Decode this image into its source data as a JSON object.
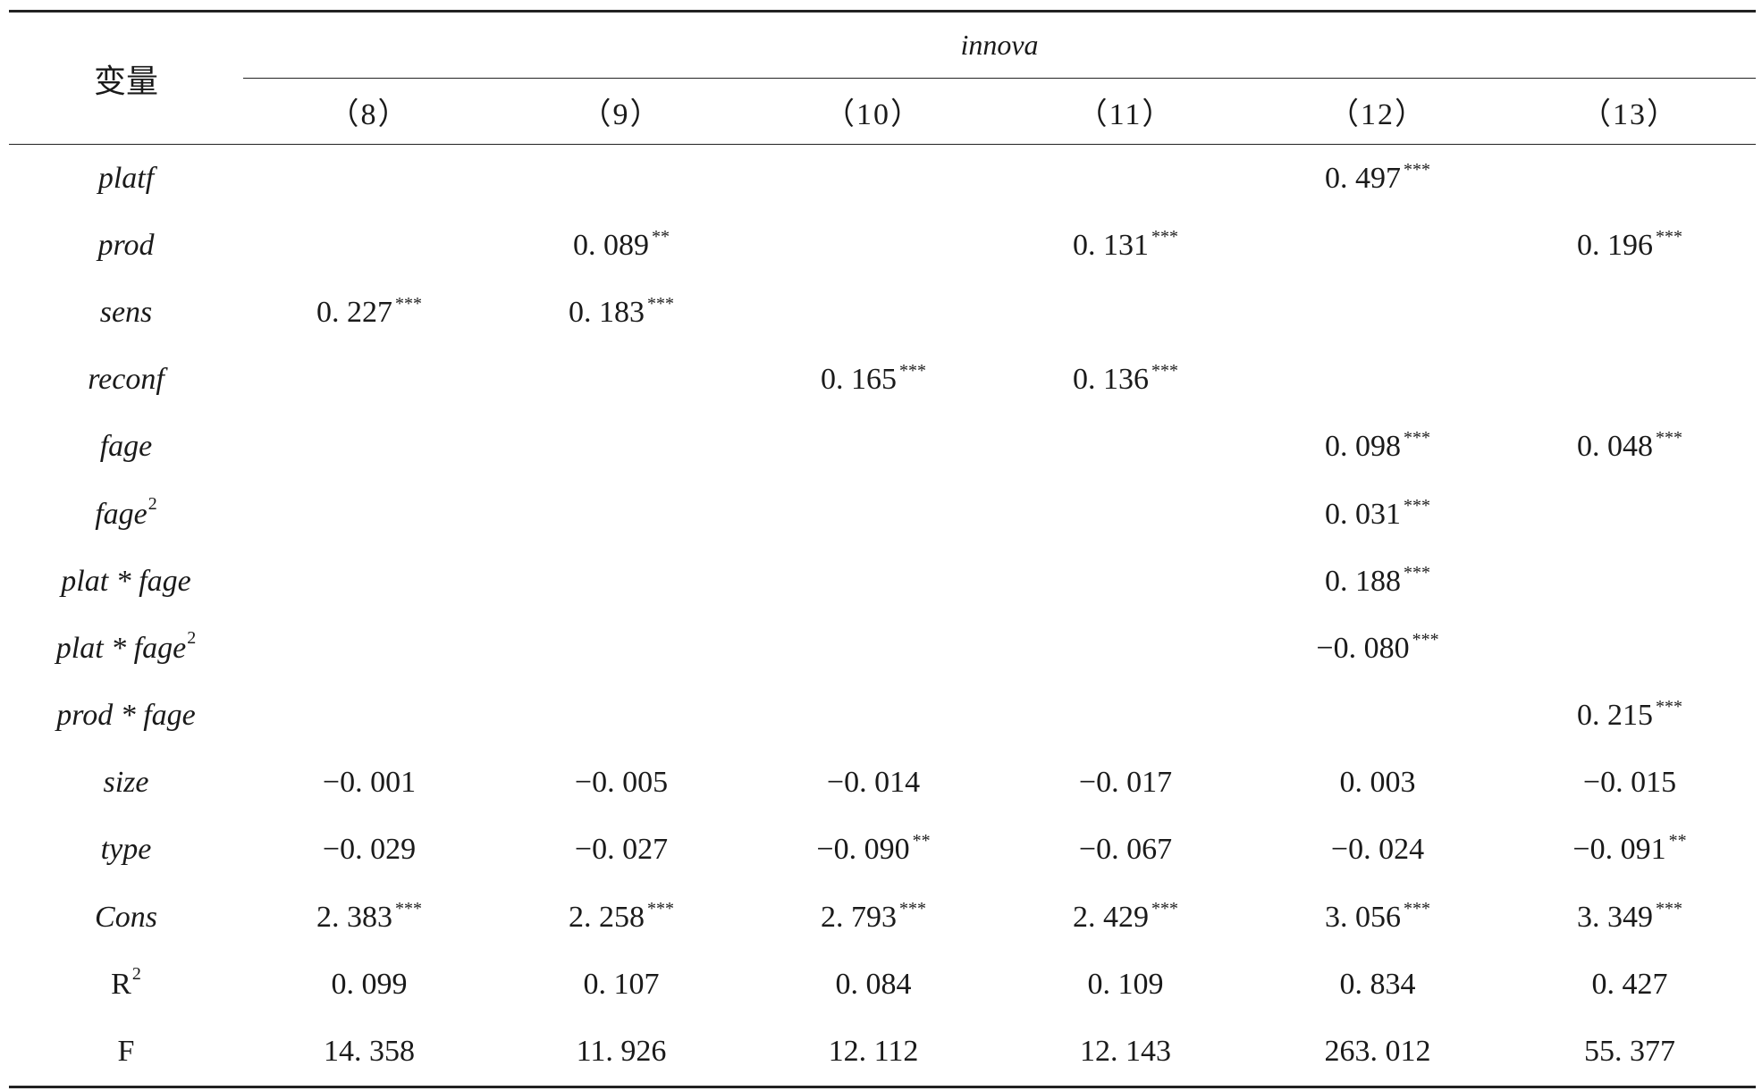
{
  "header": {
    "var_label": "变量",
    "dep_var": "innova",
    "columns": [
      "（8）",
      "（9）",
      "（10）",
      "（11）",
      "（12）",
      "（13）"
    ]
  },
  "rows": [
    {
      "name": "platf",
      "sup": "",
      "italic": true,
      "cells": [
        {
          "v": "",
          "s": ""
        },
        {
          "v": "",
          "s": ""
        },
        {
          "v": "",
          "s": ""
        },
        {
          "v": "",
          "s": ""
        },
        {
          "v": "0. 497",
          "s": "***"
        },
        {
          "v": "",
          "s": ""
        }
      ]
    },
    {
      "name": "prod",
      "sup": "",
      "italic": true,
      "cells": [
        {
          "v": "",
          "s": ""
        },
        {
          "v": "0. 089",
          "s": "**"
        },
        {
          "v": "",
          "s": ""
        },
        {
          "v": "0. 131",
          "s": "***"
        },
        {
          "v": "",
          "s": ""
        },
        {
          "v": "0. 196",
          "s": "***"
        }
      ]
    },
    {
      "name": "sens",
      "sup": "",
      "italic": true,
      "cells": [
        {
          "v": "0. 227",
          "s": "***"
        },
        {
          "v": "0. 183",
          "s": "***"
        },
        {
          "v": "",
          "s": ""
        },
        {
          "v": "",
          "s": ""
        },
        {
          "v": "",
          "s": ""
        },
        {
          "v": "",
          "s": ""
        }
      ]
    },
    {
      "name": "reconf",
      "sup": "",
      "italic": true,
      "cells": [
        {
          "v": "",
          "s": ""
        },
        {
          "v": "",
          "s": ""
        },
        {
          "v": "0. 165",
          "s": "***"
        },
        {
          "v": "0. 136",
          "s": "***"
        },
        {
          "v": "",
          "s": ""
        },
        {
          "v": "",
          "s": ""
        }
      ]
    },
    {
      "name": "fage",
      "sup": "",
      "italic": true,
      "cells": [
        {
          "v": "",
          "s": ""
        },
        {
          "v": "",
          "s": ""
        },
        {
          "v": "",
          "s": ""
        },
        {
          "v": "",
          "s": ""
        },
        {
          "v": "0. 098",
          "s": "***"
        },
        {
          "v": "0. 048",
          "s": "***"
        }
      ]
    },
    {
      "name": "fage",
      "sup": "2",
      "italic": true,
      "cells": [
        {
          "v": "",
          "s": ""
        },
        {
          "v": "",
          "s": ""
        },
        {
          "v": "",
          "s": ""
        },
        {
          "v": "",
          "s": ""
        },
        {
          "v": "0. 031",
          "s": "***"
        },
        {
          "v": "",
          "s": ""
        }
      ]
    },
    {
      "name": "plat * fage",
      "sup": "",
      "italic": true,
      "cells": [
        {
          "v": "",
          "s": ""
        },
        {
          "v": "",
          "s": ""
        },
        {
          "v": "",
          "s": ""
        },
        {
          "v": "",
          "s": ""
        },
        {
          "v": "0. 188",
          "s": "***"
        },
        {
          "v": "",
          "s": ""
        }
      ]
    },
    {
      "name": "plat * fage",
      "sup": "2",
      "italic": true,
      "cells": [
        {
          "v": "",
          "s": ""
        },
        {
          "v": "",
          "s": ""
        },
        {
          "v": "",
          "s": ""
        },
        {
          "v": "",
          "s": ""
        },
        {
          "v": "−0. 080",
          "s": "***"
        },
        {
          "v": "",
          "s": ""
        }
      ]
    },
    {
      "name": "prod * fage",
      "sup": "",
      "italic": true,
      "cells": [
        {
          "v": "",
          "s": ""
        },
        {
          "v": "",
          "s": ""
        },
        {
          "v": "",
          "s": ""
        },
        {
          "v": "",
          "s": ""
        },
        {
          "v": "",
          "s": ""
        },
        {
          "v": "0. 215",
          "s": "***"
        }
      ]
    },
    {
      "name": "size",
      "sup": "",
      "italic": true,
      "cells": [
        {
          "v": "−0. 001",
          "s": ""
        },
        {
          "v": "−0. 005",
          "s": ""
        },
        {
          "v": "−0. 014",
          "s": ""
        },
        {
          "v": "−0. 017",
          "s": ""
        },
        {
          "v": "0. 003",
          "s": ""
        },
        {
          "v": "−0. 015",
          "s": ""
        }
      ]
    },
    {
      "name": "type",
      "sup": "",
      "italic": true,
      "cells": [
        {
          "v": "−0. 029",
          "s": ""
        },
        {
          "v": "−0. 027",
          "s": ""
        },
        {
          "v": "−0. 090",
          "s": "**"
        },
        {
          "v": "−0. 067",
          "s": ""
        },
        {
          "v": "−0. 024",
          "s": ""
        },
        {
          "v": "−0. 091",
          "s": "**"
        }
      ]
    },
    {
      "name": "Cons",
      "sup": "",
      "italic": true,
      "cells": [
        {
          "v": "2. 383",
          "s": "***"
        },
        {
          "v": "2. 258",
          "s": "***"
        },
        {
          "v": "2. 793",
          "s": "***"
        },
        {
          "v": "2. 429",
          "s": "***"
        },
        {
          "v": "3. 056",
          "s": "***"
        },
        {
          "v": "3. 349",
          "s": "***"
        }
      ]
    },
    {
      "name": "R",
      "sup": "2",
      "italic": false,
      "cells": [
        {
          "v": "0. 099",
          "s": ""
        },
        {
          "v": "0. 107",
          "s": ""
        },
        {
          "v": "0. 084",
          "s": ""
        },
        {
          "v": "0. 109",
          "s": ""
        },
        {
          "v": "0. 834",
          "s": ""
        },
        {
          "v": "0. 427",
          "s": ""
        }
      ]
    },
    {
      "name": "F",
      "sup": "",
      "italic": false,
      "cells": [
        {
          "v": "14. 358",
          "s": ""
        },
        {
          "v": "11. 926",
          "s": ""
        },
        {
          "v": "12. 112",
          "s": ""
        },
        {
          "v": "12. 143",
          "s": ""
        },
        {
          "v": "263. 012",
          "s": ""
        },
        {
          "v": "55. 377",
          "s": ""
        }
      ]
    }
  ]
}
